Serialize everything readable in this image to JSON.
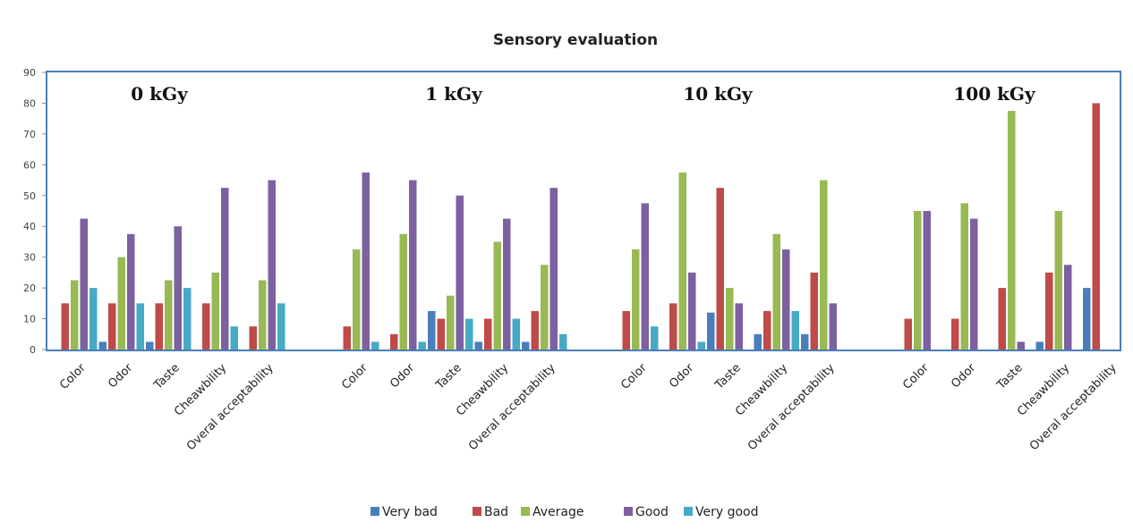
{
  "chart_data": {
    "type": "bar",
    "title": "Sensory evaluation",
    "ylim": [
      0,
      90
    ],
    "yticks": [
      0,
      10,
      20,
      30,
      40,
      50,
      60,
      70,
      80,
      90
    ],
    "grid": false,
    "legend_position": "bottom",
    "categories": [
      "Color",
      "Odor",
      "Taste",
      "Cheawbility",
      "Overal acceptability"
    ],
    "series": [
      {
        "name": "Very bad",
        "color": "#4a7ebb"
      },
      {
        "name": "Bad",
        "color": "#be4b48"
      },
      {
        "name": "Average",
        "color": "#98b954"
      },
      {
        "name": "Good",
        "color": "#7d60a0"
      },
      {
        "name": "Very good",
        "color": "#46aac5"
      }
    ],
    "groups": [
      {
        "label": "0 kGy",
        "values": [
          [
            0,
            15,
            22.5,
            42.5,
            20
          ],
          [
            2.5,
            15,
            30,
            37.5,
            15
          ],
          [
            2.5,
            15,
            22.5,
            40,
            20
          ],
          [
            0,
            15,
            25,
            52.5,
            7.5
          ],
          [
            0,
            7.5,
            22.5,
            55,
            15
          ]
        ]
      },
      {
        "label": "1 kGy",
        "values": [
          [
            0,
            7.5,
            32.5,
            57.5,
            2.5
          ],
          [
            0,
            5,
            37.5,
            55,
            2.5
          ],
          [
            12.5,
            10,
            17.5,
            50,
            10
          ],
          [
            2.5,
            10,
            35,
            42.5,
            10
          ],
          [
            2.5,
            12.5,
            27.5,
            52.5,
            5
          ]
        ]
      },
      {
        "label": "10 kGy",
        "values": [
          [
            0,
            12.5,
            32.5,
            47.5,
            7.5
          ],
          [
            0,
            15,
            57.5,
            25,
            2.5
          ],
          [
            12,
            52.5,
            20,
            15,
            0
          ],
          [
            5,
            12.5,
            37.5,
            32.5,
            12.5
          ],
          [
            5,
            25,
            55,
            15,
            0
          ]
        ]
      },
      {
        "label": "100 kGy",
        "values": [
          [
            0,
            10,
            45,
            45,
            0
          ],
          [
            0,
            10,
            47.5,
            42.5,
            0
          ],
          [
            0,
            20,
            77.5,
            2.5,
            0
          ],
          [
            2.5,
            25,
            45,
            27.5,
            0
          ],
          [
            20,
            80,
            0,
            0,
            0
          ]
        ]
      }
    ]
  }
}
